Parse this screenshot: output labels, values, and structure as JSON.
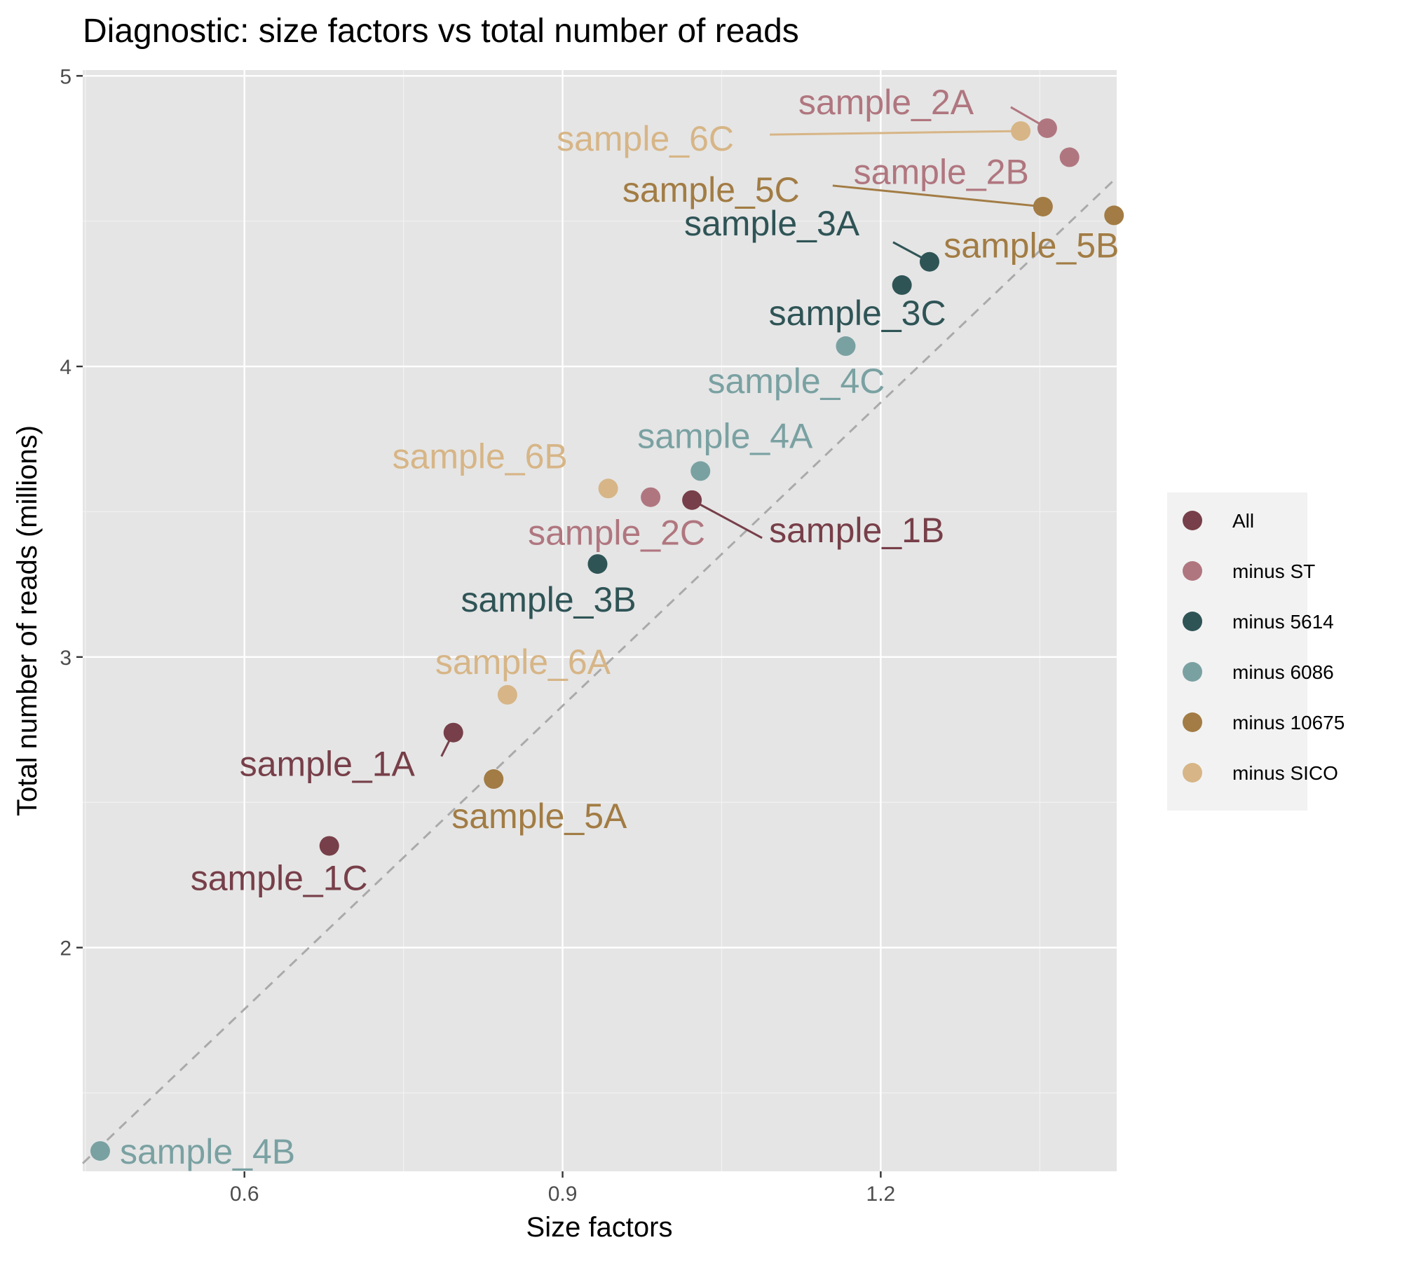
{
  "chart_data": {
    "type": "scatter",
    "title": "Diagnostic: size factors vs total number of reads",
    "xlabel": "Size factors",
    "ylabel": "Total number of reads (millions)",
    "xlim": [
      0.4475,
      1.4225
    ],
    "ylim": [
      1.23,
      5.02
    ],
    "x_ticks": [
      0.6,
      0.9,
      1.2
    ],
    "x_tick_labels": [
      "0.6",
      "0.9",
      "1.2"
    ],
    "y_ticks": [
      2,
      3,
      4,
      5
    ],
    "y_tick_labels": [
      "2",
      "3",
      "4",
      "5"
    ],
    "grid": true,
    "legend_position": "right",
    "reference_line": {
      "style": "dashed",
      "slope": 3.48,
      "intercept": -0.3
    },
    "groups": [
      {
        "name": "All",
        "color": "#773F49"
      },
      {
        "name": "minus ST",
        "color": "#B0767F"
      },
      {
        "name": "minus 5614",
        "color": "#2F5456"
      },
      {
        "name": "minus 6086",
        "color": "#7AA1A2"
      },
      {
        "name": "minus 10675",
        "color": "#A27C44"
      },
      {
        "name": "minus SICO",
        "color": "#D7B586"
      }
    ],
    "points": [
      {
        "label": "sample_1A",
        "group": "All",
        "x": 0.797,
        "y": 2.74
      },
      {
        "label": "sample_1B",
        "group": "All",
        "x": 1.022,
        "y": 3.54
      },
      {
        "label": "sample_1C",
        "group": "All",
        "x": 0.68,
        "y": 2.35
      },
      {
        "label": "sample_2A",
        "group": "minus ST",
        "x": 1.357,
        "y": 4.82
      },
      {
        "label": "sample_2B",
        "group": "minus ST",
        "x": 1.378,
        "y": 4.72
      },
      {
        "label": "sample_2C",
        "group": "minus ST",
        "x": 0.983,
        "y": 3.55
      },
      {
        "label": "sample_3A",
        "group": "minus 5614",
        "x": 1.246,
        "y": 4.36
      },
      {
        "label": "sample_3B",
        "group": "minus 5614",
        "x": 0.933,
        "y": 3.32
      },
      {
        "label": "sample_3C",
        "group": "minus 5614",
        "x": 1.22,
        "y": 4.28
      },
      {
        "label": "sample_4A",
        "group": "minus 6086",
        "x": 1.03,
        "y": 3.64
      },
      {
        "label": "sample_4B",
        "group": "minus 6086",
        "x": 0.464,
        "y": 1.3
      },
      {
        "label": "sample_4C",
        "group": "minus 6086",
        "x": 1.167,
        "y": 4.07
      },
      {
        "label": "sample_5A",
        "group": "minus 10675",
        "x": 0.835,
        "y": 2.58
      },
      {
        "label": "sample_5B",
        "group": "minus 10675",
        "x": 1.42,
        "y": 4.52
      },
      {
        "label": "sample_5C",
        "group": "minus 10675",
        "x": 1.353,
        "y": 4.55
      },
      {
        "label": "sample_6A",
        "group": "minus SICO",
        "x": 0.848,
        "y": 2.87
      },
      {
        "label": "sample_6B",
        "group": "minus SICO",
        "x": 0.943,
        "y": 3.58
      },
      {
        "label": "sample_6C",
        "group": "minus SICO",
        "x": 1.332,
        "y": 4.81
      }
    ]
  }
}
